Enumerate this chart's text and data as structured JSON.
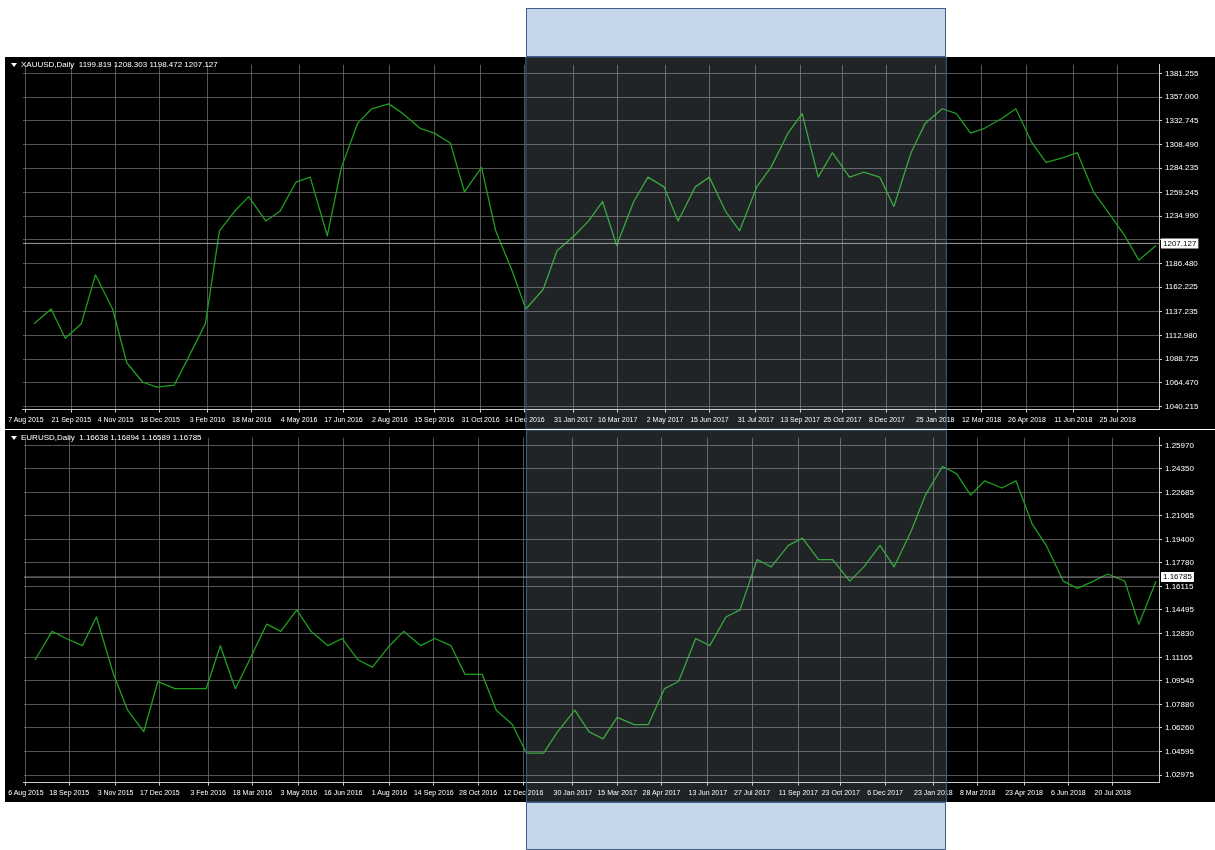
{
  "chart_data": [
    {
      "type": "line",
      "title": "XAUUSD,Daily  1199.819 1208.303 1198.472 1207.127",
      "grid": true,
      "x": [
        "2015-08-15",
        "2015-09-01",
        "2015-09-15",
        "2015-10-01",
        "2015-10-15",
        "2015-11-01",
        "2015-11-15",
        "2015-12-01",
        "2015-12-15",
        "2016-01-01",
        "2016-01-15",
        "2016-02-01",
        "2016-02-15",
        "2016-03-01",
        "2016-03-15",
        "2016-04-01",
        "2016-04-15",
        "2016-05-01",
        "2016-05-15",
        "2016-06-01",
        "2016-06-15",
        "2016-07-01",
        "2016-07-15",
        "2016-08-01",
        "2016-08-15",
        "2016-09-01",
        "2016-09-15",
        "2016-10-01",
        "2016-10-15",
        "2016-11-01",
        "2016-11-15",
        "2016-12-01",
        "2016-12-15",
        "2017-01-01",
        "2017-01-15",
        "2017-02-01",
        "2017-02-15",
        "2017-03-01",
        "2017-03-15",
        "2017-04-01",
        "2017-04-15",
        "2017-05-01",
        "2017-05-15",
        "2017-06-01",
        "2017-06-15",
        "2017-07-01",
        "2017-07-15",
        "2017-08-01",
        "2017-08-15",
        "2017-09-01",
        "2017-09-15",
        "2017-10-01",
        "2017-10-15",
        "2017-11-01",
        "2017-11-15",
        "2017-12-01",
        "2017-12-15",
        "2018-01-01",
        "2018-01-15",
        "2018-02-01",
        "2018-02-15",
        "2018-03-01",
        "2018-03-15",
        "2018-04-01",
        "2018-04-15",
        "2018-05-01",
        "2018-05-15",
        "2018-06-01",
        "2018-06-15",
        "2018-07-01",
        "2018-07-15",
        "2018-08-01",
        "2018-08-15",
        "2018-09-01"
      ],
      "series": [
        {
          "color": "#1f9e1f",
          "values": [
            1125,
            1140,
            1110,
            1125,
            1175,
            1140,
            1085,
            1065,
            1060,
            1062,
            1090,
            1125,
            1220,
            1240,
            1255,
            1230,
            1240,
            1270,
            1275,
            1215,
            1285,
            1330,
            1345,
            1350,
            1340,
            1325,
            1320,
            1310,
            1260,
            1285,
            1220,
            1180,
            1140,
            1160,
            1200,
            1215,
            1230,
            1250,
            1205,
            1250,
            1275,
            1265,
            1230,
            1265,
            1275,
            1240,
            1220,
            1265,
            1285,
            1320,
            1340,
            1275,
            1300,
            1275,
            1280,
            1275,
            1245,
            1300,
            1330,
            1345,
            1340,
            1320,
            1325,
            1335,
            1345,
            1310,
            1290,
            1295,
            1300,
            1260,
            1240,
            1215,
            1190,
            1205
          ]
        }
      ],
      "xlim": [
        "2015-08-04",
        "2018-09-04"
      ],
      "xticks": [
        {
          "value": "2015-08-07",
          "label": "7 Aug 2015"
        },
        {
          "value": "2015-09-21",
          "label": "21 Sep 2015"
        },
        {
          "value": "2015-11-04",
          "label": "4 Nov 2015"
        },
        {
          "value": "2015-12-18",
          "label": "18 Dec 2015"
        },
        {
          "value": "2016-02-03",
          "label": "3 Feb 2016"
        },
        {
          "value": "2016-03-18",
          "label": "18 Mar 2016"
        },
        {
          "value": "2016-05-04",
          "label": "4 May 2016"
        },
        {
          "value": "2016-06-17",
          "label": "17 Jun 2016"
        },
        {
          "value": "2016-08-02",
          "label": "2 Aug 2016"
        },
        {
          "value": "2016-09-15",
          "label": "15 Sep 2016"
        },
        {
          "value": "2016-10-31",
          "label": "31 Oct 2016"
        },
        {
          "value": "2016-12-14",
          "label": "14 Dec 2016"
        },
        {
          "value": "2017-01-31",
          "label": "31 Jan 2017"
        },
        {
          "value": "2017-03-16",
          "label": "16 Mar 2017"
        },
        {
          "value": "2017-05-02",
          "label": "2 May 2017"
        },
        {
          "value": "2017-06-15",
          "label": "15 Jun 2017"
        },
        {
          "value": "2017-07-31",
          "label": "31 Jul 2017"
        },
        {
          "value": "2017-09-13",
          "label": "13 Sep 2017"
        },
        {
          "value": "2017-10-25",
          "label": "25 Oct 2017"
        },
        {
          "value": "2017-12-08",
          "label": "8 Dec 2017"
        },
        {
          "value": "2018-01-25",
          "label": "25 Jan 2018"
        },
        {
          "value": "2018-03-12",
          "label": "12 Mar 2018"
        },
        {
          "value": "2018-04-26",
          "label": "26 Apr 2018"
        },
        {
          "value": "2018-06-11",
          "label": "11 Jun 2018"
        },
        {
          "value": "2018-07-25",
          "label": "25 Jul 2018"
        }
      ],
      "ylim": [
        1037,
        1390
      ],
      "yticks": [
        1040.215,
        {
          "value": 1064.47,
          "label": "1064.470"
        },
        {
          "value": 1088.725,
          "label": "1088.725"
        },
        {
          "value": 1112.98,
          "label": "1112.980"
        },
        1137.235,
        1162.225,
        {
          "value": 1186.48,
          "label": "1186.480"
        },
        {
          "value": 1210.735,
          "label": null
        },
        {
          "value": 1234.99,
          "label": "1234.990"
        },
        1259.245,
        1284.235,
        {
          "value": 1308.49,
          "label": "1308.490"
        },
        1332.745,
        {
          "value": 1357,
          "label": "1357.000"
        },
        1381.255
      ],
      "ref_lines": [
        {
          "axis": "y",
          "value": 1207.127,
          "label": "1207.127",
          "color": "#9a9a9a"
        }
      ],
      "bands": [
        {
          "axis": "x",
          "from": "2016-12-15",
          "to": "2018-02-05",
          "color": "#c5d5ea"
        }
      ]
    },
    {
      "type": "line",
      "title": "EURUSD,Daily  1.16638 1.16894 1.16589 1.16785",
      "grid": true,
      "x": [
        "2015-08-15",
        "2015-09-01",
        "2015-09-15",
        "2015-10-01",
        "2015-10-15",
        "2015-11-01",
        "2015-11-15",
        "2015-12-01",
        "2015-12-15",
        "2016-01-01",
        "2016-01-15",
        "2016-02-01",
        "2016-02-15",
        "2016-03-01",
        "2016-03-15",
        "2016-04-01",
        "2016-04-15",
        "2016-05-01",
        "2016-05-15",
        "2016-06-01",
        "2016-06-15",
        "2016-07-01",
        "2016-07-15",
        "2016-08-01",
        "2016-08-15",
        "2016-09-01",
        "2016-09-15",
        "2016-10-01",
        "2016-10-15",
        "2016-11-01",
        "2016-11-15",
        "2016-12-01",
        "2016-12-15",
        "2017-01-01",
        "2017-01-15",
        "2017-02-01",
        "2017-02-15",
        "2017-03-01",
        "2017-03-15",
        "2017-04-01",
        "2017-04-15",
        "2017-05-01",
        "2017-05-15",
        "2017-06-01",
        "2017-06-15",
        "2017-07-01",
        "2017-07-15",
        "2017-08-01",
        "2017-08-15",
        "2017-09-01",
        "2017-09-15",
        "2017-10-01",
        "2017-10-15",
        "2017-11-01",
        "2017-11-15",
        "2017-12-01",
        "2017-12-15",
        "2018-01-01",
        "2018-01-15",
        "2018-02-01",
        "2018-02-15",
        "2018-03-01",
        "2018-03-15",
        "2018-04-01",
        "2018-04-15",
        "2018-05-01",
        "2018-05-15",
        "2018-06-01",
        "2018-06-15",
        "2018-07-01",
        "2018-07-15",
        "2018-08-01",
        "2018-08-15",
        "2018-09-01"
      ],
      "series": [
        {
          "color": "#1f9e1f",
          "values": [
            1.11,
            1.13,
            1.125,
            1.12,
            1.14,
            1.1,
            1.075,
            1.06,
            1.095,
            1.09,
            1.09,
            1.09,
            1.12,
            1.09,
            1.11,
            1.135,
            1.13,
            1.145,
            1.13,
            1.12,
            1.125,
            1.11,
            1.105,
            1.12,
            1.13,
            1.12,
            1.125,
            1.12,
            1.1,
            1.1,
            1.075,
            1.065,
            1.045,
            1.045,
            1.06,
            1.075,
            1.06,
            1.055,
            1.07,
            1.065,
            1.065,
            1.09,
            1.095,
            1.125,
            1.12,
            1.14,
            1.145,
            1.18,
            1.175,
            1.19,
            1.195,
            1.18,
            1.18,
            1.165,
            1.175,
            1.19,
            1.175,
            1.2,
            1.225,
            1.245,
            1.24,
            1.225,
            1.235,
            1.23,
            1.235,
            1.205,
            1.19,
            1.165,
            1.16,
            1.165,
            1.17,
            1.165,
            1.135,
            1.165
          ]
        }
      ],
      "xlim": [
        "2015-08-04",
        "2018-09-04"
      ],
      "xticks": [
        {
          "value": "2015-08-06",
          "label": "6 Aug 2015"
        },
        {
          "value": "2015-09-18",
          "label": "18 Sep 2015"
        },
        {
          "value": "2015-11-03",
          "label": "3 Nov 2015"
        },
        {
          "value": "2015-12-17",
          "label": "17 Dec 2015"
        },
        {
          "value": "2016-02-03",
          "label": "3 Feb 2016"
        },
        {
          "value": "2016-03-18",
          "label": "18 Mar 2016"
        },
        {
          "value": "2016-05-03",
          "label": "3 May 2016"
        },
        {
          "value": "2016-06-16",
          "label": "16 Jun 2016"
        },
        {
          "value": "2016-08-01",
          "label": "1 Aug 2016"
        },
        {
          "value": "2016-09-14",
          "label": "14 Sep 2016"
        },
        {
          "value": "2016-10-28",
          "label": "28 Oct 2016"
        },
        {
          "value": "2016-12-12",
          "label": "12 Dec 2016"
        },
        {
          "value": "2017-01-30",
          "label": "30 Jan 2017"
        },
        {
          "value": "2017-03-15",
          "label": "15 Mar 2017"
        },
        {
          "value": "2017-04-28",
          "label": "28 Apr 2017"
        },
        {
          "value": "2017-06-13",
          "label": "13 Jun 2017"
        },
        {
          "value": "2017-07-27",
          "label": "27 Jul 2017"
        },
        {
          "value": "2017-09-11",
          "label": "11 Sep 2017"
        },
        {
          "value": "2017-10-23",
          "label": "23 Oct 2017"
        },
        {
          "value": "2017-12-06",
          "label": "6 Dec 2017"
        },
        {
          "value": "2018-01-23",
          "label": "23 Jan 2018"
        },
        {
          "value": "2018-03-08",
          "label": "8 Mar 2018"
        },
        {
          "value": "2018-04-23",
          "label": "23 Apr 2018"
        },
        {
          "value": "2018-06-06",
          "label": "6 Jun 2018"
        },
        {
          "value": "2018-07-20",
          "label": "20 Jul 2018"
        }
      ],
      "ylim": [
        1.0245,
        1.265
      ],
      "yticks": [
        1.02975,
        1.04595,
        {
          "value": 1.0626,
          "label": "1.06260"
        },
        {
          "value": 1.0788,
          "label": "1.07880"
        },
        1.09545,
        1.11165,
        {
          "value": 1.1283,
          "label": "1.12830"
        },
        1.14495,
        1.16115,
        {
          "value": 1.1778,
          "label": "1.17780"
        },
        {
          "value": 1.194,
          "label": "1.19400"
        },
        1.21065,
        1.22685,
        {
          "value": 1.2435,
          "label": "1.24350"
        },
        {
          "value": 1.2597,
          "label": "1.25970"
        }
      ],
      "ref_lines": [
        {
          "axis": "y",
          "value": 1.16785,
          "label": "1.16785",
          "color": "#9a9a9a"
        }
      ],
      "bands": [
        {
          "axis": "x",
          "from": "2016-12-15",
          "to": "2018-02-05",
          "color": "#c5d5ea"
        }
      ]
    }
  ]
}
